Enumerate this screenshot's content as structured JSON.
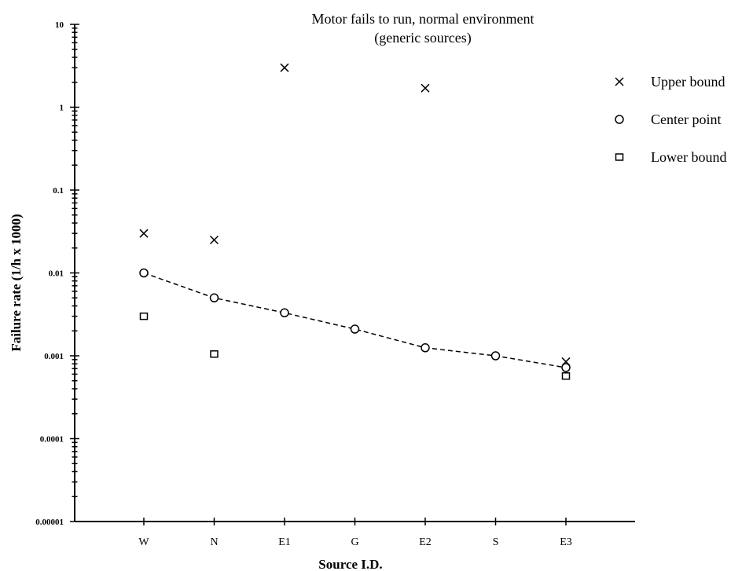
{
  "chart_data": {
    "type": "scatter",
    "title_line1": "Motor fails to run, normal environment",
    "title_line2": "(generic sources)",
    "xlabel": "Source I.D.",
    "ylabel": "Failure rate (1/h x 1000)",
    "y_scale": "log",
    "ylim": [
      1e-05,
      10
    ],
    "y_ticks": [
      {
        "value": 10,
        "label": "10"
      },
      {
        "value": 1,
        "label": "1"
      },
      {
        "value": 0.1,
        "label": "0.1"
      },
      {
        "value": 0.01,
        "label": "0.01"
      },
      {
        "value": 0.001,
        "label": "0.001"
      },
      {
        "value": 0.0001,
        "label": "0.0001"
      },
      {
        "value": 1e-05,
        "label": "0.00001"
      }
    ],
    "categories": [
      "W",
      "N",
      "E1",
      "G",
      "E2",
      "S",
      "E3"
    ],
    "series": [
      {
        "name": "Upper bound",
        "marker": "x",
        "values": [
          0.03,
          0.025,
          3.0,
          null,
          1.7,
          null,
          0.00085
        ]
      },
      {
        "name": "Center point",
        "marker": "circle",
        "values": [
          0.01,
          0.005,
          0.0033,
          0.0021,
          0.00125,
          0.001,
          0.00072
        ],
        "dashed_line": true
      },
      {
        "name": "Lower bound",
        "marker": "square",
        "values": [
          0.003,
          0.00105,
          null,
          null,
          null,
          null,
          0.00057
        ]
      }
    ],
    "legend_position": "right",
    "grid": false
  }
}
